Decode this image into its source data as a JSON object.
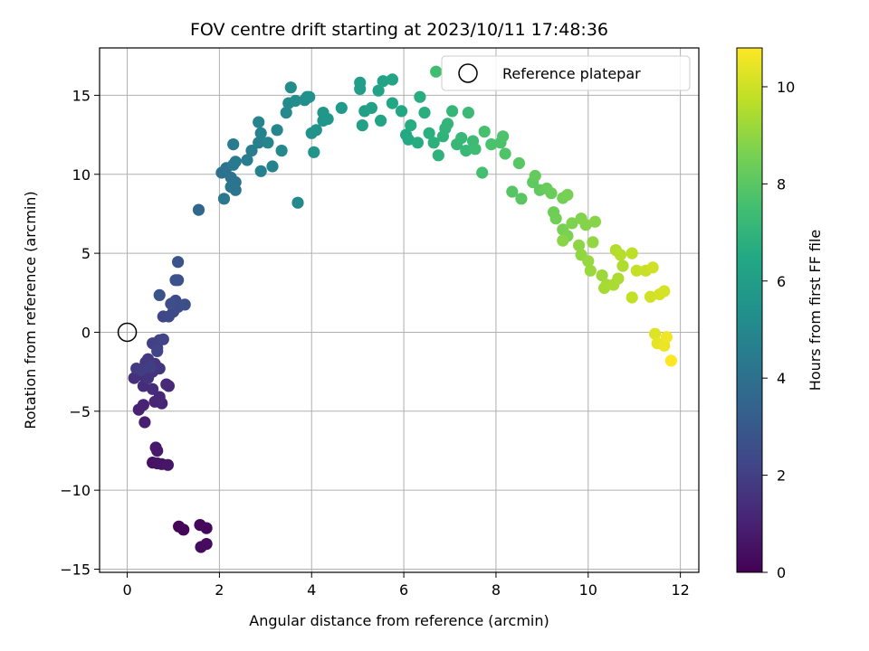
{
  "chart_data": {
    "type": "scatter",
    "title": "FOV centre drift starting at 2023/10/11 17:48:36",
    "xlabel": "Angular distance from reference (arcmin)",
    "ylabel": "Rotation from reference (arcmin)",
    "xlim": [
      -0.6,
      12.4
    ],
    "ylim": [
      -15.2,
      18.0
    ],
    "xticks": [
      0,
      2,
      4,
      6,
      8,
      10,
      12
    ],
    "xtick_labels": [
      "0",
      "2",
      "4",
      "6",
      "8",
      "10",
      "12"
    ],
    "yticks": [
      -15,
      -10,
      -5,
      0,
      5,
      10,
      15
    ],
    "ytick_labels": [
      "−15",
      "−10",
      "−5",
      "0",
      "5",
      "10",
      "15"
    ],
    "grid": true,
    "legend": {
      "placement": "top-right",
      "entries": [
        "Reference platepar"
      ]
    },
    "colorbar": {
      "label": "Hours from first FF file",
      "colormap": "viridis",
      "range": [
        0,
        10.8
      ],
      "ticks": [
        0,
        2,
        4,
        6,
        8,
        10
      ],
      "tick_labels": [
        "0",
        "2",
        "4",
        "6",
        "8",
        "10"
      ]
    },
    "reference_point": {
      "x": 0,
      "y": 0,
      "marker": "open-circle"
    },
    "series": [
      {
        "color_value": "hours",
        "points": [
          [
            1.12,
            -12.3,
            0.1
          ],
          [
            1.22,
            -12.5,
            0.15
          ],
          [
            1.58,
            -12.2,
            0.2
          ],
          [
            1.72,
            -12.4,
            0.25
          ],
          [
            1.6,
            -13.6,
            0.3
          ],
          [
            1.72,
            -13.4,
            0.35
          ],
          [
            0.55,
            -8.25,
            0.5
          ],
          [
            0.65,
            -8.3,
            0.55
          ],
          [
            0.75,
            -8.35,
            0.6
          ],
          [
            0.88,
            -8.4,
            0.65
          ],
          [
            0.62,
            -7.3,
            0.7
          ],
          [
            0.65,
            -7.5,
            0.75
          ],
          [
            0.38,
            -5.7,
            0.9
          ],
          [
            0.25,
            -4.9,
            1.0
          ],
          [
            0.35,
            -4.6,
            1.05
          ],
          [
            0.6,
            -4.4,
            1.1
          ],
          [
            0.75,
            -4.5,
            1.15
          ],
          [
            0.7,
            -4.1,
            1.2
          ],
          [
            0.9,
            -3.4,
            1.25
          ],
          [
            0.85,
            -3.3,
            1.3
          ],
          [
            0.55,
            -3.6,
            1.35
          ],
          [
            0.35,
            -3.4,
            1.4
          ],
          [
            0.15,
            -2.9,
            1.45
          ],
          [
            0.3,
            -2.7,
            1.5
          ],
          [
            0.45,
            -2.9,
            1.55
          ],
          [
            0.55,
            -2.5,
            1.6
          ],
          [
            0.7,
            -2.3,
            1.65
          ],
          [
            0.6,
            -2.0,
            1.7
          ],
          [
            0.4,
            -1.9,
            1.75
          ],
          [
            0.45,
            -1.7,
            1.8
          ],
          [
            0.2,
            -2.3,
            1.85
          ],
          [
            0.3,
            -2.4,
            1.9
          ],
          [
            0.5,
            -2.2,
            1.95
          ],
          [
            0.65,
            -1.0,
            2.0
          ],
          [
            0.55,
            -0.7,
            2.05
          ],
          [
            0.7,
            -0.5,
            2.1
          ],
          [
            0.78,
            -0.45,
            2.15
          ],
          [
            0.65,
            -1.2,
            2.2
          ],
          [
            0.78,
            1.0,
            2.3
          ],
          [
            0.9,
            1.0,
            2.35
          ],
          [
            1.0,
            1.3,
            2.4
          ],
          [
            1.1,
            1.6,
            2.45
          ],
          [
            1.05,
            2.0,
            2.5
          ],
          [
            0.95,
            1.8,
            2.55
          ],
          [
            1.25,
            1.75,
            2.6
          ],
          [
            1.1,
            3.3,
            2.65
          ],
          [
            1.05,
            3.3,
            2.7
          ],
          [
            1.1,
            4.45,
            2.75
          ],
          [
            0.7,
            2.35,
            2.8
          ],
          [
            1.55,
            7.75,
            3.6
          ],
          [
            2.05,
            10.1,
            4.0
          ],
          [
            2.15,
            10.4,
            4.05
          ],
          [
            2.25,
            9.8,
            4.1
          ],
          [
            2.35,
            9.5,
            4.15
          ],
          [
            2.35,
            9.0,
            4.2
          ],
          [
            2.25,
            9.2,
            4.25
          ],
          [
            2.1,
            8.45,
            4.3
          ],
          [
            2.3,
            10.6,
            4.35
          ],
          [
            2.35,
            10.8,
            4.4
          ],
          [
            2.3,
            11.9,
            4.45
          ],
          [
            2.6,
            10.9,
            4.55
          ],
          [
            2.7,
            11.5,
            4.6
          ],
          [
            2.85,
            12.0,
            4.65
          ],
          [
            2.9,
            10.2,
            4.7
          ],
          [
            3.15,
            10.5,
            4.75
          ],
          [
            2.9,
            12.6,
            4.8
          ],
          [
            2.85,
            13.3,
            4.85
          ],
          [
            3.05,
            12.0,
            4.9
          ],
          [
            3.25,
            12.8,
            4.95
          ],
          [
            3.35,
            11.5,
            5.0
          ],
          [
            3.7,
            8.2,
            5.05
          ],
          [
            3.45,
            13.9,
            5.1
          ],
          [
            3.5,
            14.5,
            5.15
          ],
          [
            3.65,
            14.65,
            5.2
          ],
          [
            3.55,
            15.5,
            5.25
          ],
          [
            3.85,
            14.7,
            5.3
          ],
          [
            3.9,
            14.9,
            5.35
          ],
          [
            3.95,
            14.9,
            5.4
          ],
          [
            4.0,
            12.6,
            5.45
          ],
          [
            4.1,
            12.8,
            5.5
          ],
          [
            4.05,
            11.4,
            5.55
          ],
          [
            4.25,
            13.4,
            5.6
          ],
          [
            4.35,
            13.5,
            5.65
          ],
          [
            4.25,
            13.9,
            5.7
          ],
          [
            4.65,
            14.2,
            5.85
          ],
          [
            5.05,
            15.8,
            5.95
          ],
          [
            5.05,
            15.4,
            6.0
          ],
          [
            5.15,
            14.0,
            6.05
          ],
          [
            5.1,
            13.1,
            6.1
          ],
          [
            5.3,
            14.2,
            6.15
          ],
          [
            5.45,
            15.3,
            6.2
          ],
          [
            5.55,
            15.9,
            6.25
          ],
          [
            5.75,
            16.0,
            6.3
          ],
          [
            5.5,
            13.4,
            6.35
          ],
          [
            5.75,
            14.5,
            6.4
          ],
          [
            5.95,
            14.0,
            6.45
          ],
          [
            6.05,
            12.5,
            6.5
          ],
          [
            6.1,
            12.2,
            6.55
          ],
          [
            6.15,
            13.1,
            6.6
          ],
          [
            6.3,
            12.0,
            6.65
          ],
          [
            6.35,
            14.9,
            6.7
          ],
          [
            6.45,
            13.9,
            6.75
          ],
          [
            6.55,
            12.6,
            6.8
          ],
          [
            6.65,
            12.0,
            6.85
          ],
          [
            6.75,
            11.2,
            6.9
          ],
          [
            6.85,
            12.4,
            6.95
          ],
          [
            6.9,
            12.9,
            7.0
          ],
          [
            6.95,
            13.2,
            7.05
          ],
          [
            7.05,
            14.0,
            7.1
          ],
          [
            7.15,
            11.9,
            7.15
          ],
          [
            7.25,
            12.3,
            7.2
          ],
          [
            7.35,
            11.5,
            7.25
          ],
          [
            7.4,
            13.9,
            7.3
          ],
          [
            7.5,
            12.1,
            7.35
          ],
          [
            7.55,
            11.6,
            7.4
          ],
          [
            6.7,
            16.5,
            7.45
          ],
          [
            7.7,
            10.1,
            7.55
          ],
          [
            7.75,
            12.7,
            7.6
          ],
          [
            7.9,
            11.9,
            7.65
          ],
          [
            8.1,
            12.0,
            7.7
          ],
          [
            8.15,
            12.4,
            7.75
          ],
          [
            8.2,
            11.3,
            7.8
          ],
          [
            8.35,
            8.9,
            7.9
          ],
          [
            8.5,
            10.7,
            7.95
          ],
          [
            8.55,
            8.45,
            8.0
          ],
          [
            8.8,
            9.5,
            8.1
          ],
          [
            8.95,
            9.0,
            8.15
          ],
          [
            8.85,
            9.9,
            8.2
          ],
          [
            9.1,
            9.1,
            8.3
          ],
          [
            9.2,
            8.8,
            8.35
          ],
          [
            9.25,
            7.6,
            8.4
          ],
          [
            9.3,
            7.2,
            8.45
          ],
          [
            9.45,
            8.5,
            8.5
          ],
          [
            9.55,
            8.7,
            8.55
          ],
          [
            9.45,
            6.5,
            8.6
          ],
          [
            9.55,
            6.1,
            8.65
          ],
          [
            9.65,
            6.9,
            8.7
          ],
          [
            9.85,
            7.2,
            8.75
          ],
          [
            9.95,
            6.8,
            8.8
          ],
          [
            10.15,
            7.0,
            8.85
          ],
          [
            9.45,
            5.8,
            8.9
          ],
          [
            9.8,
            5.5,
            8.95
          ],
          [
            9.85,
            4.9,
            9.0
          ],
          [
            10.1,
            5.7,
            9.05
          ],
          [
            10.0,
            4.5,
            9.1
          ],
          [
            10.05,
            3.9,
            9.15
          ],
          [
            10.3,
            3.6,
            9.2
          ],
          [
            10.4,
            3.0,
            9.3
          ],
          [
            10.35,
            2.8,
            9.35
          ],
          [
            10.55,
            3.0,
            9.4
          ],
          [
            10.65,
            3.4,
            9.45
          ],
          [
            10.75,
            4.2,
            9.5
          ],
          [
            10.6,
            5.2,
            9.55
          ],
          [
            10.7,
            4.9,
            9.6
          ],
          [
            10.95,
            5.0,
            9.7
          ],
          [
            10.95,
            2.2,
            9.8
          ],
          [
            11.05,
            3.9,
            9.85
          ],
          [
            11.25,
            3.9,
            9.9
          ],
          [
            11.4,
            4.1,
            10.0
          ],
          [
            11.35,
            2.25,
            10.05
          ],
          [
            11.55,
            2.4,
            10.1
          ],
          [
            11.65,
            2.6,
            10.15
          ],
          [
            11.45,
            -0.1,
            10.3
          ],
          [
            11.5,
            -0.7,
            10.4
          ],
          [
            11.65,
            -0.85,
            10.5
          ],
          [
            11.7,
            -0.3,
            10.6
          ],
          [
            11.8,
            -1.8,
            10.8
          ]
        ]
      }
    ]
  }
}
